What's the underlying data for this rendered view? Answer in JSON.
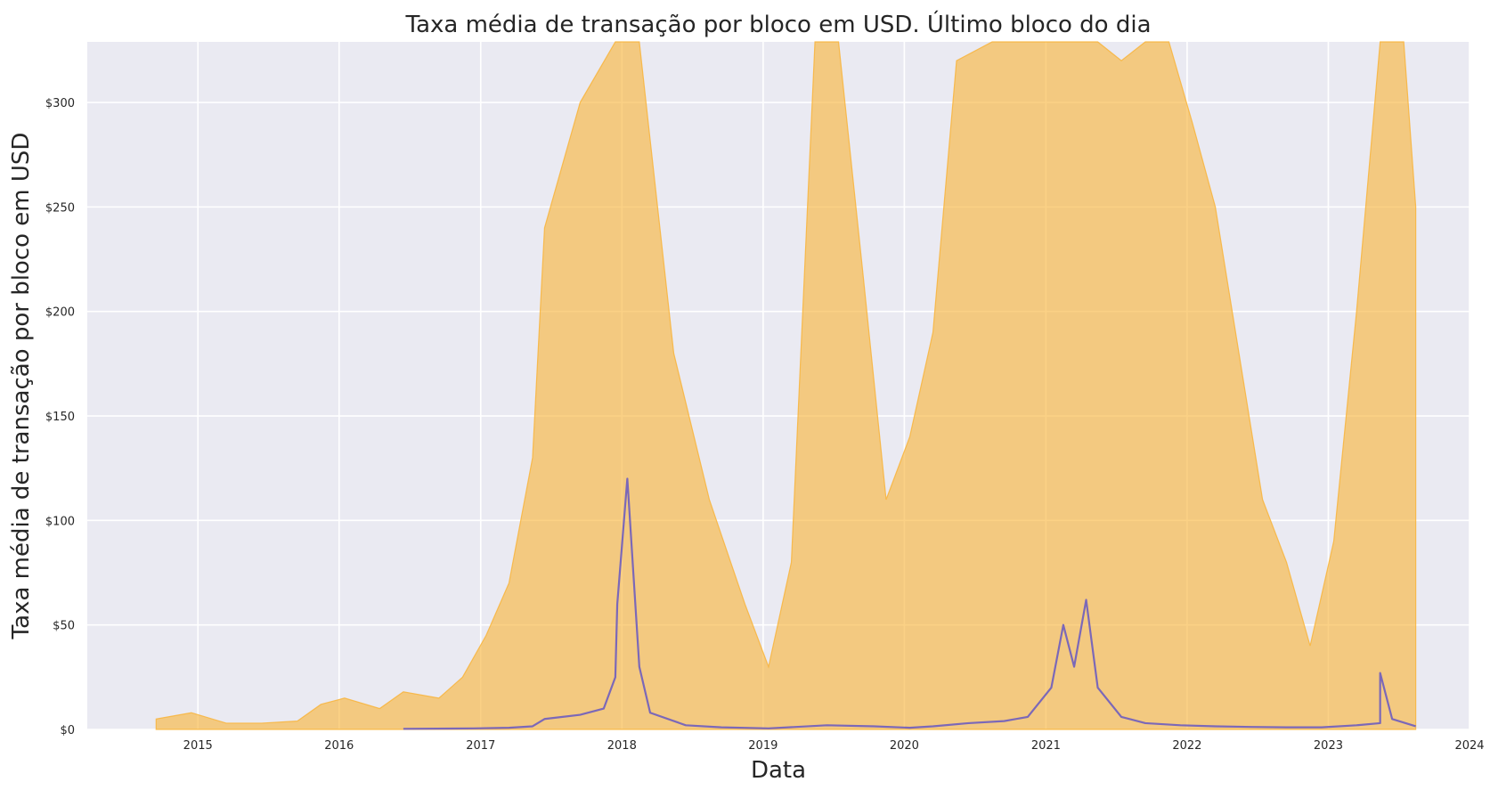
{
  "chart_data": {
    "type": "area",
    "title": "Taxa média de transação por bloco em USD. Último bloco do dia",
    "xlabel": "Data",
    "ylabel": "Taxa média de transação por bloco em USD",
    "x_range": [
      "2014-03-21",
      "2024-01-01"
    ],
    "ylim": [
      0,
      329
    ],
    "x_ticks": [
      "2015",
      "2016",
      "2017",
      "2018",
      "2019",
      "2020",
      "2021",
      "2022",
      "2023",
      "2024"
    ],
    "y_ticks": [
      0,
      50,
      100,
      150,
      200,
      250,
      300
    ],
    "y_tick_labels": [
      "$0",
      "$50",
      "$100",
      "$150",
      "$200",
      "$250",
      "$300"
    ],
    "grid": true,
    "legend": "none",
    "colors": {
      "area": "#f9b233",
      "line": "#7b68b8",
      "background": "#eaeaf2",
      "grid": "#ffffff"
    },
    "series": [
      {
        "style": "area",
        "x": [
          "2014-09",
          "2014-12",
          "2015-03",
          "2015-06",
          "2015-09",
          "2015-11",
          "2016-01",
          "2016-04",
          "2016-06",
          "2016-09",
          "2016-11",
          "2017-01",
          "2017-03",
          "2017-05",
          "2017-06",
          "2017-09",
          "2017-12",
          "2018-02",
          "2018-05",
          "2018-08",
          "2018-11",
          "2019-01",
          "2019-03",
          "2019-05",
          "2019-07",
          "2019-09",
          "2019-11",
          "2020-01",
          "2020-03",
          "2020-05",
          "2020-08",
          "2020-11",
          "2021-01",
          "2021-03",
          "2021-05",
          "2021-07",
          "2021-09",
          "2021-11",
          "2022-01",
          "2022-03",
          "2022-05",
          "2022-07",
          "2022-09",
          "2022-11",
          "2023-01",
          "2023-03",
          "2023-05",
          "2023-07",
          "2023-08"
        ],
        "values": [
          5,
          8,
          3,
          3,
          4,
          12,
          15,
          10,
          18,
          15,
          25,
          45,
          70,
          130,
          240,
          300,
          329,
          329,
          180,
          110,
          60,
          30,
          80,
          329,
          329,
          220,
          110,
          140,
          190,
          320,
          329,
          329,
          329,
          329,
          329,
          320,
          329,
          329,
          290,
          250,
          180,
          110,
          80,
          40,
          90,
          200,
          329,
          329,
          250
        ]
      },
      {
        "style": "line",
        "x": [
          "2016-06",
          "2016-12",
          "2017-03",
          "2017-05",
          "2017-06",
          "2017-09",
          "2017-11",
          "2017-12",
          "2017-12-20",
          "2018-01",
          "2018-02",
          "2018-03",
          "2018-06",
          "2018-09",
          "2019-01",
          "2019-06",
          "2019-10",
          "2020-01",
          "2020-03",
          "2020-06",
          "2020-09",
          "2020-11",
          "2021-01",
          "2021-02",
          "2021-03",
          "2021-04",
          "2021-05",
          "2021-07",
          "2021-09",
          "2021-12",
          "2022-03",
          "2022-06",
          "2022-09",
          "2022-12",
          "2023-03",
          "2023-05",
          "2023-05-15",
          "2023-06",
          "2023-08"
        ],
        "values": [
          0.3,
          0.5,
          0.8,
          1.5,
          5,
          7,
          10,
          25,
          60,
          120,
          30,
          8,
          2,
          1,
          0.5,
          2,
          1.5,
          0.8,
          1.5,
          3,
          4,
          6,
          20,
          50,
          30,
          62,
          20,
          6,
          3,
          2,
          1.5,
          1.2,
          1,
          1,
          2,
          3,
          27,
          5,
          1.5
        ]
      }
    ]
  }
}
